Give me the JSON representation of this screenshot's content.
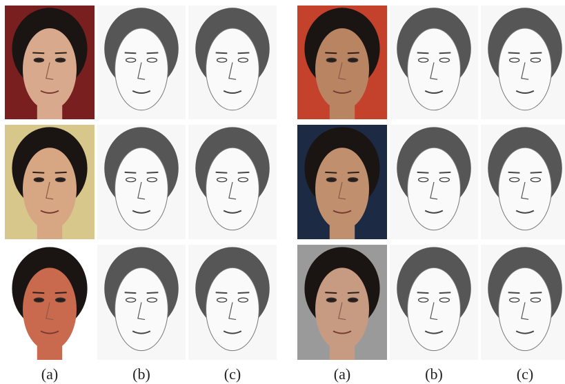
{
  "figure": {
    "groups": [
      {
        "labels": [
          "(a)",
          "(b)",
          "(c)"
        ]
      },
      {
        "labels": [
          "(a)",
          "(b)",
          "(c)"
        ]
      }
    ]
  }
}
